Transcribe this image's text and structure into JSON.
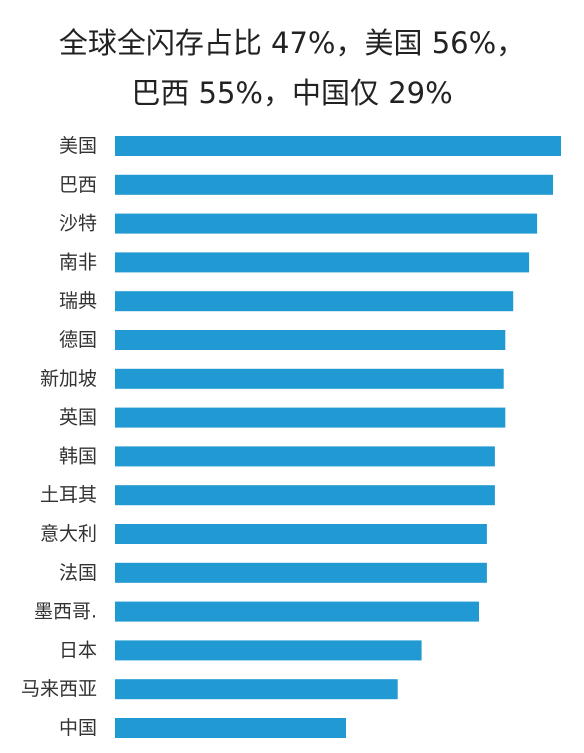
{
  "title": {
    "line1": "全球全闪存占比 47%，美国 56%，",
    "line2": "巴西 55%，中国仅 29%"
  },
  "colors": {
    "bar": "#2199d3",
    "label": "#333333",
    "title": "#222222"
  },
  "chart_data": {
    "type": "bar",
    "orientation": "horizontal",
    "title": "全球全闪存占比 47%，美国 56%，巴西 55%，中国仅 29%",
    "categories": [
      "美国",
      "巴西",
      "沙特",
      "南非",
      "瑞典",
      "德国",
      "新加坡",
      "英国",
      "韩国",
      "土耳其",
      "意大利",
      "法国",
      "墨西哥.",
      "日本",
      "马来西亚",
      "中国"
    ],
    "values": [
      56,
      55,
      53,
      52,
      50,
      49,
      48.8,
      49,
      47.7,
      47.7,
      46.7,
      46.7,
      45.7,
      38.5,
      35.5,
      29
    ],
    "xlim": [
      0,
      56
    ],
    "grid": false,
    "legend": "none",
    "data_labels": false
  }
}
